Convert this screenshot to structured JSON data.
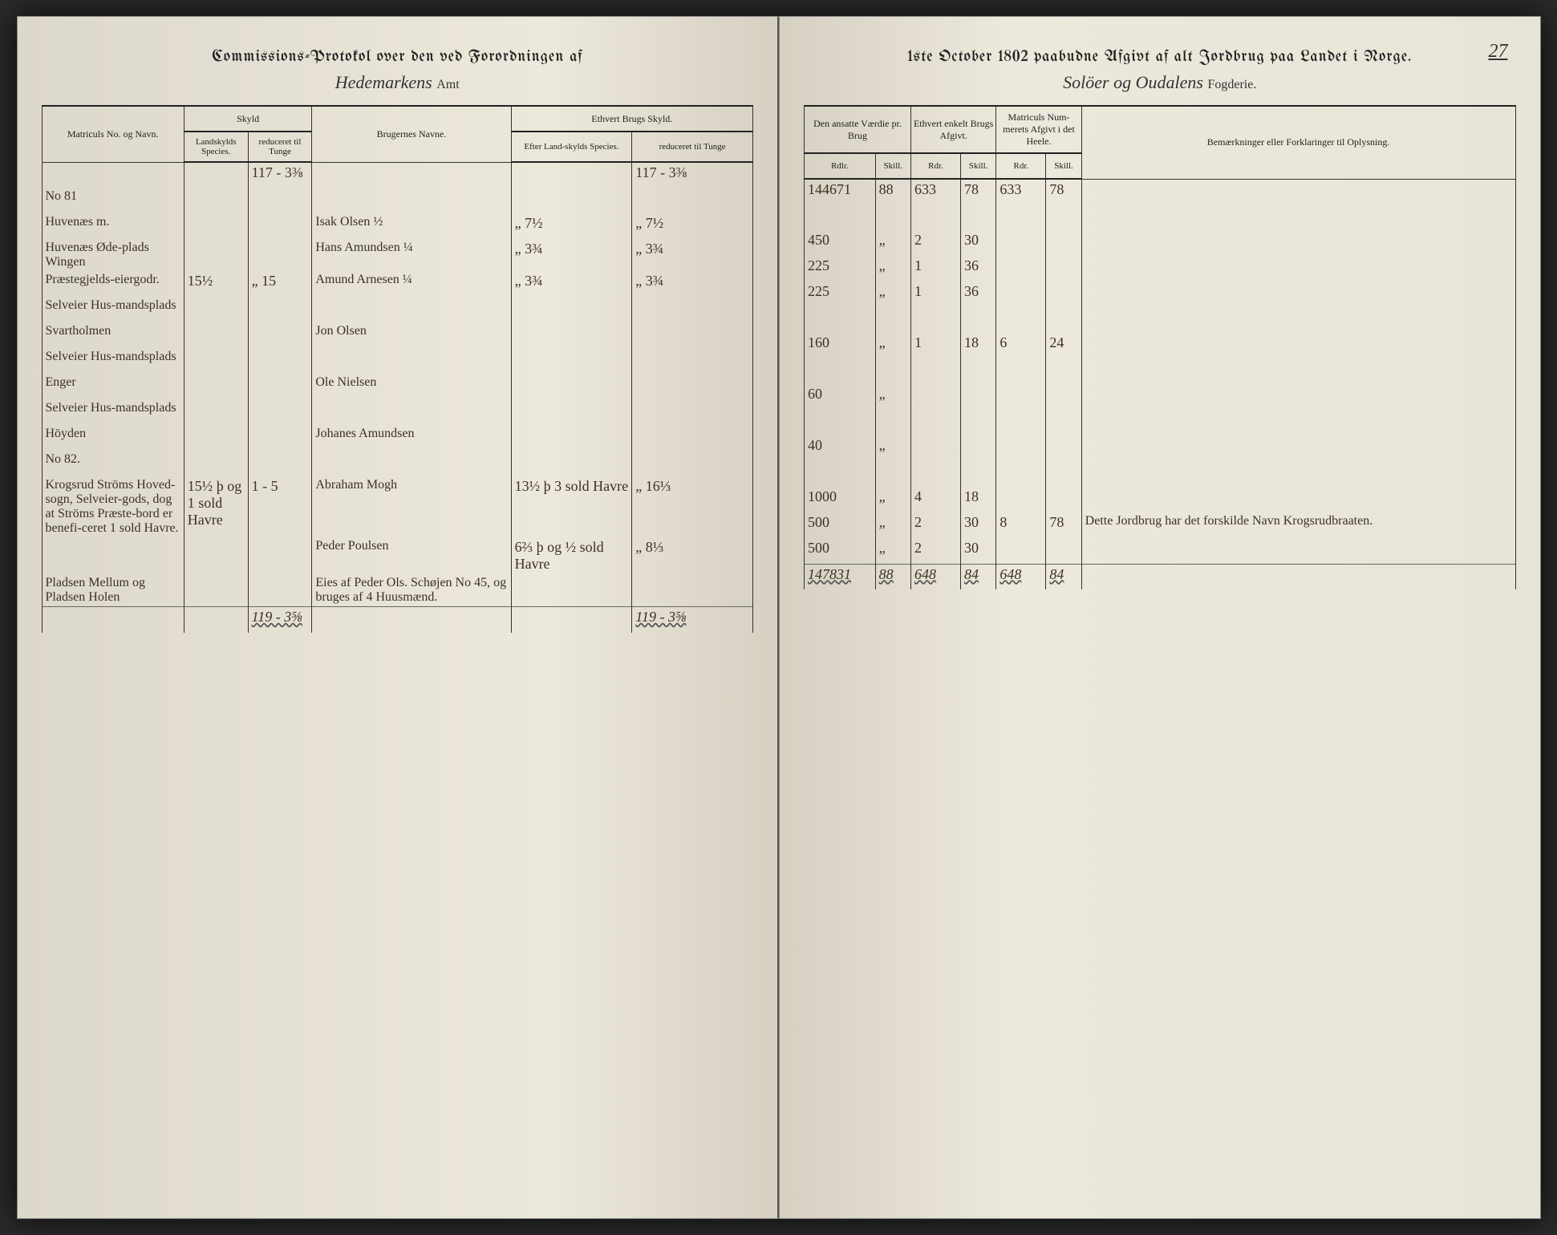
{
  "page_number": "27",
  "left": {
    "title": "Commissions-Protokol over den ved Forordningen af",
    "region_script": "Hedemarkens",
    "region_printed": "Amt",
    "headers": {
      "col1": "Matriculs No. og Navn.",
      "skyld": "Skyld",
      "skyld_sub1": "Landskylds Species.",
      "skyld_sub2": "reduceret til Tunge",
      "col3": "Brugernes Navne.",
      "ethvert": "Ethvert Brugs Skyld.",
      "ethvert_sub1": "Efter Land-skylds Species.",
      "ethvert_sub2": "reduceret til Tunge"
    },
    "carry": {
      "skyld_red": "117 - 3⅜",
      "brug_red": "117 - 3⅜"
    },
    "rows": [
      {
        "matricul": "No 81",
        "name": "",
        "sk1": "",
        "sk2": "",
        "bruger": "",
        "e1": "",
        "e2": ""
      },
      {
        "matricul": "Huvenæs m.",
        "name": "",
        "sk1": "",
        "sk2": "",
        "bruger": "Isak Olsen ½",
        "e1": "„ 7½",
        "e2": "„ 7½"
      },
      {
        "matricul": "Huvenæs Øde-plads Wingen",
        "name": "",
        "sk1": "",
        "sk2": "",
        "bruger": "Hans Amundsen ¼",
        "e1": "„ 3¾",
        "e2": "„ 3¾"
      },
      {
        "matricul": "Præstegjelds-eiergodr.",
        "name": "",
        "sk1": "15½",
        "sk2": "„ 15",
        "bruger": "Amund Arnesen ¼",
        "e1": "„ 3¾",
        "e2": "„ 3¾"
      },
      {
        "matricul": "Selveier Hus-mandsplads",
        "name": "",
        "sk1": "",
        "sk2": "",
        "bruger": "",
        "e1": "",
        "e2": ""
      },
      {
        "matricul": "Svartholmen",
        "name": "",
        "sk1": "",
        "sk2": "",
        "bruger": "Jon Olsen",
        "e1": "",
        "e2": ""
      },
      {
        "matricul": "Selveier Hus-mandsplads",
        "name": "",
        "sk1": "",
        "sk2": "",
        "bruger": "",
        "e1": "",
        "e2": ""
      },
      {
        "matricul": "Enger",
        "name": "",
        "sk1": "",
        "sk2": "",
        "bruger": "Ole Nielsen",
        "e1": "",
        "e2": ""
      },
      {
        "matricul": "Selveier Hus-mandsplads",
        "name": "",
        "sk1": "",
        "sk2": "",
        "bruger": "",
        "e1": "",
        "e2": ""
      },
      {
        "matricul": "Höyden",
        "name": "",
        "sk1": "",
        "sk2": "",
        "bruger": "Johanes Amundsen",
        "e1": "",
        "e2": ""
      },
      {
        "matricul": "No 82.",
        "name": "",
        "sk1": "",
        "sk2": "",
        "bruger": "",
        "e1": "",
        "e2": ""
      },
      {
        "matricul": "Krogsrud Ströms Hoved-sogn, Selveier-gods, dog at Ströms Præste-bord er benefi-ceret 1 sold Havre.",
        "name": "",
        "sk1": "15½ þ og 1 sold Havre",
        "sk2": "1 - 5",
        "bruger": "Abraham Mogh",
        "e1": "13½ þ 3 sold Havre",
        "e2": "„ 16⅓"
      },
      {
        "matricul": "",
        "name": "",
        "sk1": "",
        "sk2": "",
        "bruger": "Peder Poulsen",
        "e1": "6⅔ þ og ½ sold Havre",
        "e2": "„ 8⅓"
      },
      {
        "matricul": "Pladsen Mellum og Pladsen Holen",
        "name": "",
        "sk1": "",
        "sk2": "",
        "bruger": "Eies af Peder Ols. Schøjen No 45, og bruges af 4 Huusmænd.",
        "e1": "",
        "e2": ""
      }
    ],
    "total": {
      "sk2": "119 - 3⅝",
      "e2": "119 - 3⅝"
    }
  },
  "right": {
    "title": "1ste October 1802 paabudne Afgivt af alt Jordbrug paa Landet i Norge.",
    "region_script": "Solöer og Oudalens",
    "region_printed": "Fogderie.",
    "headers": {
      "col1": "Den ansatte Værdie pr. Brug",
      "col1_sub1": "Rdlr.",
      "col1_sub2": "Skill.",
      "col2": "Ethvert enkelt Brugs Afgivt.",
      "col2_sub1": "Rdr.",
      "col2_sub2": "Skill.",
      "col3": "Matriculs Num-merets Afgivt i det Heele.",
      "col3_sub1": "Rdr.",
      "col3_sub2": "Skill.",
      "col4": "Bemærkninger eller Forklaringer til Oplysning."
    },
    "carry": {
      "v_rdlr": "144671",
      "v_sk": "88",
      "b_rdr": "633",
      "b_sk": "78",
      "m_rdr": "633",
      "m_sk": "78"
    },
    "rows": [
      {
        "v_rdlr": "",
        "v_sk": "",
        "b_rdr": "",
        "b_sk": "",
        "m_rdr": "",
        "m_sk": "",
        "note": ""
      },
      {
        "v_rdlr": "450",
        "v_sk": "„",
        "b_rdr": "2",
        "b_sk": "30",
        "m_rdr": "",
        "m_sk": "",
        "note": ""
      },
      {
        "v_rdlr": "225",
        "v_sk": "„",
        "b_rdr": "1",
        "b_sk": "36",
        "m_rdr": "",
        "m_sk": "",
        "note": ""
      },
      {
        "v_rdlr": "225",
        "v_sk": "„",
        "b_rdr": "1",
        "b_sk": "36",
        "m_rdr": "",
        "m_sk": "",
        "note": ""
      },
      {
        "v_rdlr": "",
        "v_sk": "",
        "b_rdr": "",
        "b_sk": "",
        "m_rdr": "",
        "m_sk": "",
        "note": ""
      },
      {
        "v_rdlr": "160",
        "v_sk": "„",
        "b_rdr": "1",
        "b_sk": "18",
        "m_rdr": "6",
        "m_sk": "24",
        "note": ""
      },
      {
        "v_rdlr": "",
        "v_sk": "",
        "b_rdr": "",
        "b_sk": "",
        "m_rdr": "",
        "m_sk": "",
        "note": ""
      },
      {
        "v_rdlr": "60",
        "v_sk": "„",
        "b_rdr": "",
        "b_sk": "",
        "m_rdr": "",
        "m_sk": "",
        "note": ""
      },
      {
        "v_rdlr": "",
        "v_sk": "",
        "b_rdr": "",
        "b_sk": "",
        "m_rdr": "",
        "m_sk": "",
        "note": ""
      },
      {
        "v_rdlr": "40",
        "v_sk": "„",
        "b_rdr": "",
        "b_sk": "",
        "m_rdr": "",
        "m_sk": "",
        "note": ""
      },
      {
        "v_rdlr": "",
        "v_sk": "",
        "b_rdr": "",
        "b_sk": "",
        "m_rdr": "",
        "m_sk": "",
        "note": ""
      },
      {
        "v_rdlr": "1000",
        "v_sk": "„",
        "b_rdr": "4",
        "b_sk": "18",
        "m_rdr": "",
        "m_sk": "",
        "note": ""
      },
      {
        "v_rdlr": "500",
        "v_sk": "„",
        "b_rdr": "2",
        "b_sk": "30",
        "m_rdr": "8",
        "m_sk": "78",
        "note": "Dette Jordbrug har det forskilde Navn Krogsrudbraaten."
      },
      {
        "v_rdlr": "500",
        "v_sk": "„",
        "b_rdr": "2",
        "b_sk": "30",
        "m_rdr": "",
        "m_sk": "",
        "note": ""
      }
    ],
    "total": {
      "v_rdlr": "147831",
      "v_sk": "88",
      "b_rdr": "648",
      "b_sk": "84",
      "m_rdr": "648",
      "m_sk": "84"
    }
  }
}
